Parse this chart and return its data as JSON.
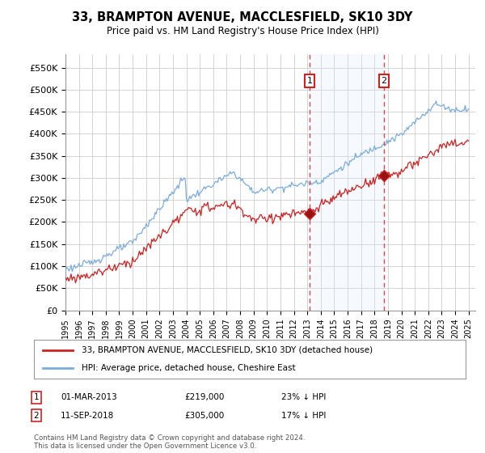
{
  "title": "33, BRAMPTON AVENUE, MACCLESFIELD, SK10 3DY",
  "subtitle": "Price paid vs. HM Land Registry's House Price Index (HPI)",
  "ylabel_ticks": [
    "£0",
    "£50K",
    "£100K",
    "£150K",
    "£200K",
    "£250K",
    "£300K",
    "£350K",
    "£400K",
    "£450K",
    "£500K",
    "£550K"
  ],
  "ytick_values": [
    0,
    50000,
    100000,
    150000,
    200000,
    250000,
    300000,
    350000,
    400000,
    450000,
    500000,
    550000
  ],
  "ylim": [
    0,
    580000
  ],
  "xlim_start": 1995.0,
  "xlim_end": 2025.5,
  "hpi_color": "#7aacdc",
  "price_color": "#cc2222",
  "vline_color": "#dd4444",
  "vline_style": "--",
  "shade_color": "#ddeeff",
  "hatch_color": "#ccddee",
  "transaction_1": {
    "date_num": 2013.17,
    "price": 219000,
    "label": "1",
    "pct": "23% ↓ HPI",
    "date_str": "01-MAR-2013"
  },
  "transaction_2": {
    "date_num": 2018.7,
    "price": 305000,
    "label": "2",
    "pct": "17% ↓ HPI",
    "date_str": "11-SEP-2018"
  },
  "legend_line1": "33, BRAMPTON AVENUE, MACCLESFIELD, SK10 3DY (detached house)",
  "legend_line2": "HPI: Average price, detached house, Cheshire East",
  "footer1": "Contains HM Land Registry data © Crown copyright and database right 2024.",
  "footer2": "This data is licensed under the Open Government Licence v3.0.",
  "background_color": "#ffffff",
  "grid_color": "#cccccc",
  "xtick_years": [
    1995,
    1996,
    1997,
    1998,
    1999,
    2000,
    2001,
    2002,
    2003,
    2004,
    2005,
    2006,
    2007,
    2008,
    2009,
    2010,
    2011,
    2012,
    2013,
    2014,
    2015,
    2016,
    2017,
    2018,
    2019,
    2020,
    2021,
    2022,
    2023,
    2024,
    2025
  ]
}
